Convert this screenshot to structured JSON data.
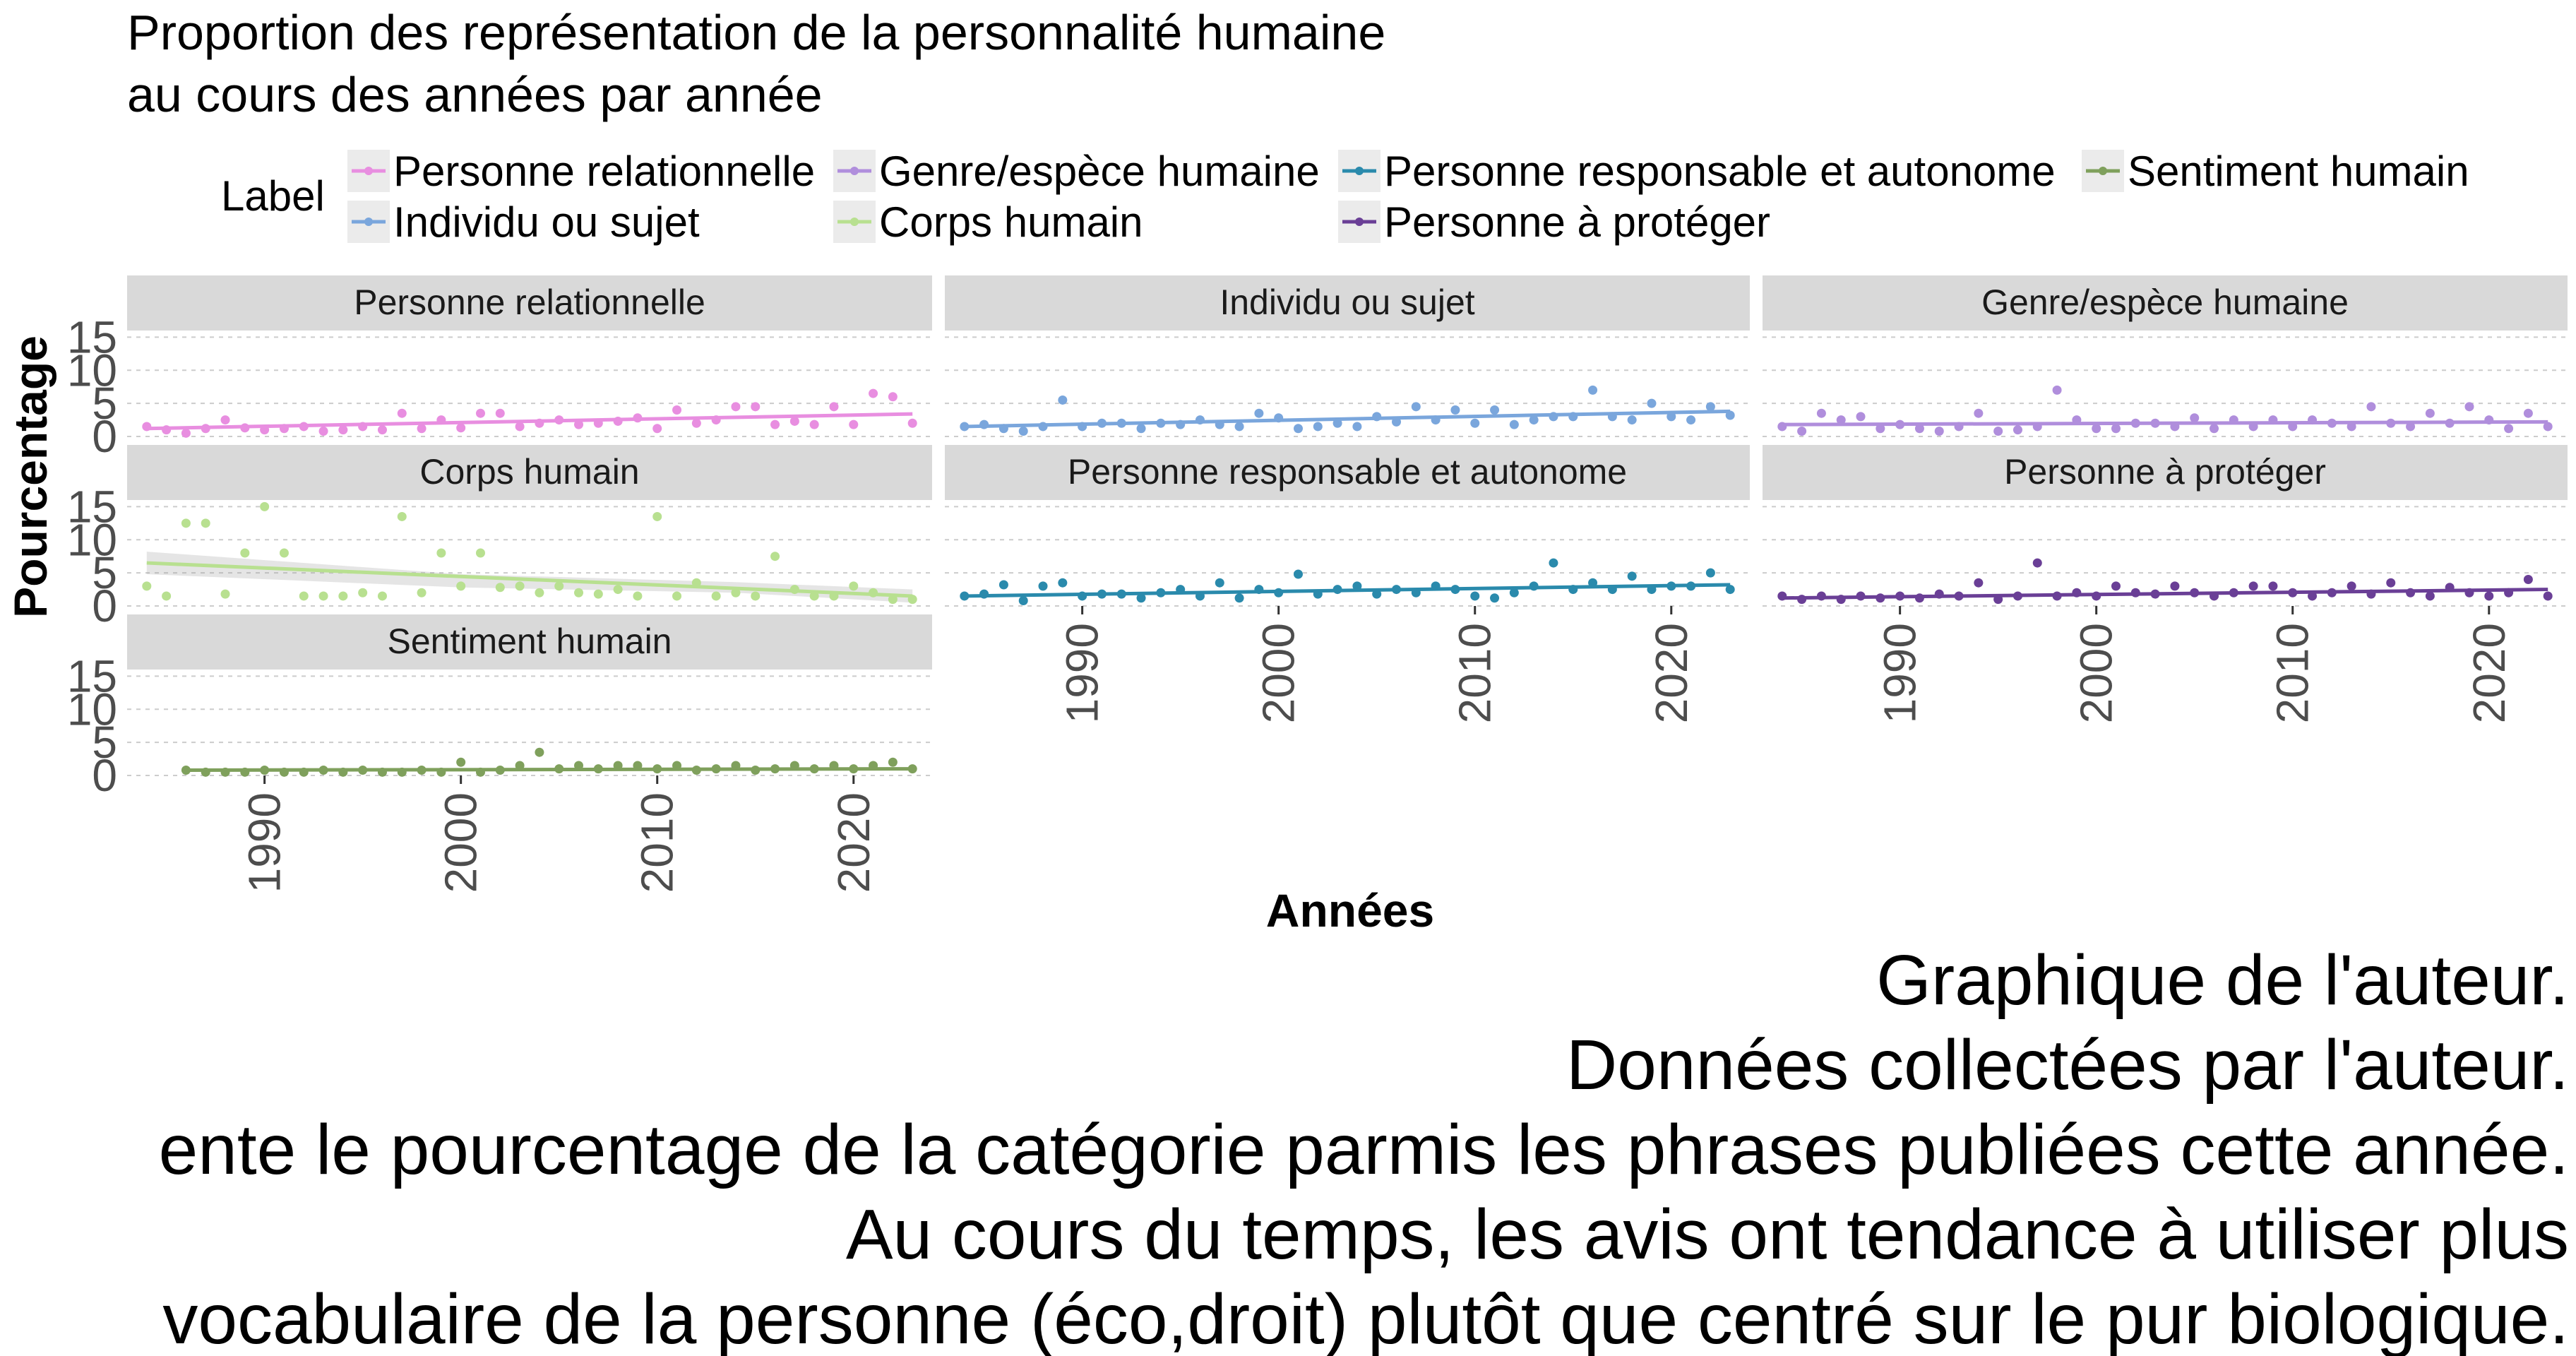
{
  "chart_data": {
    "type": "scatter",
    "title_lines": [
      "Proportion des représentation de la personnalité humaine",
      "au cours des années par année"
    ],
    "xlabel": "Années",
    "ylabel": "Pourcentage",
    "xlim": [
      1983,
      2024
    ],
    "ylim": [
      0,
      16
    ],
    "x_ticks": [
      1990,
      2000,
      2010,
      2020
    ],
    "y_ticks": [
      0,
      5,
      10,
      15
    ],
    "grid": true,
    "legend": {
      "title": "Label",
      "placement": "top",
      "entries": [
        "Personne relationnelle",
        "Genre/espèce humaine",
        "Personne responsable et autonome",
        "Sentiment humain",
        "Individu ou sujet",
        "Corps humain",
        "Personne à protéger"
      ]
    },
    "facets": [
      {
        "name": "Personne relationnelle",
        "color": "#e88ee0",
        "trend": [
          1.2,
          3.4
        ],
        "x": [
          1984,
          1985,
          1986,
          1987,
          1988,
          1989,
          1990,
          1991,
          1992,
          1993,
          1994,
          1995,
          1996,
          1997,
          1998,
          1999,
          2000,
          2001,
          2002,
          2003,
          2004,
          2005,
          2006,
          2007,
          2008,
          2009,
          2010,
          2011,
          2012,
          2013,
          2014,
          2015,
          2016,
          2017,
          2018,
          2019,
          2020,
          2021,
          2022,
          2023
        ],
        "y": [
          1.5,
          1.0,
          0.5,
          1.2,
          2.5,
          1.3,
          1.0,
          1.2,
          1.5,
          0.8,
          1.0,
          1.5,
          1.0,
          3.5,
          1.2,
          2.5,
          1.3,
          3.5,
          3.5,
          1.5,
          2.0,
          2.5,
          1.8,
          2.0,
          2.3,
          2.8,
          1.2,
          4.0,
          2.0,
          2.5,
          4.5,
          4.5,
          1.8,
          2.3,
          1.8,
          4.5,
          1.8,
          6.5,
          6.0,
          2.0
        ]
      },
      {
        "name": "Individu ou sujet",
        "color": "#7aa6dc",
        "trend": [
          1.5,
          3.8
        ],
        "x": [
          1984,
          1985,
          1986,
          1987,
          1988,
          1989,
          1990,
          1991,
          1992,
          1993,
          1994,
          1995,
          1996,
          1997,
          1998,
          1999,
          2000,
          2001,
          2002,
          2003,
          2004,
          2005,
          2006,
          2007,
          2008,
          2009,
          2010,
          2011,
          2012,
          2013,
          2014,
          2015,
          2016,
          2017,
          2018,
          2019,
          2020,
          2021,
          2022,
          2023
        ],
        "y": [
          1.5,
          1.8,
          1.2,
          0.8,
          1.5,
          5.5,
          1.5,
          2.0,
          2.0,
          1.2,
          2.0,
          1.8,
          2.5,
          1.8,
          1.5,
          3.5,
          2.8,
          1.2,
          1.5,
          2.0,
          1.5,
          3.0,
          2.2,
          4.5,
          2.5,
          4.0,
          2.0,
          4.0,
          1.8,
          2.5,
          3.0,
          3.0,
          7.0,
          3.0,
          2.5,
          5.0,
          3.0,
          2.5,
          4.5,
          3.2
        ]
      },
      {
        "name": "Genre/espèce humaine",
        "color": "#b08edc",
        "trend": [
          1.8,
          2.2
        ],
        "x": [
          1984,
          1985,
          1986,
          1987,
          1988,
          1989,
          1990,
          1991,
          1992,
          1993,
          1994,
          1995,
          1996,
          1997,
          1998,
          1999,
          2000,
          2001,
          2002,
          2003,
          2004,
          2005,
          2006,
          2007,
          2008,
          2009,
          2010,
          2011,
          2012,
          2013,
          2014,
          2015,
          2016,
          2017,
          2018,
          2019,
          2020,
          2021,
          2022,
          2023
        ],
        "y": [
          1.5,
          0.8,
          3.5,
          2.5,
          3.0,
          1.2,
          1.8,
          1.2,
          0.8,
          1.5,
          3.5,
          0.8,
          1.0,
          1.5,
          7.0,
          2.5,
          1.2,
          1.2,
          2.0,
          2.0,
          1.5,
          2.8,
          1.2,
          2.5,
          1.5,
          2.5,
          1.5,
          2.5,
          2.0,
          1.5,
          4.5,
          2.0,
          1.5,
          3.5,
          2.0,
          4.5,
          2.5,
          1.2,
          3.5,
          1.5
        ]
      },
      {
        "name": "Corps humain",
        "color": "#b8e090",
        "trend": [
          6.5,
          1.5
        ],
        "band": [
          [
            1984,
            4.8,
            8.2
          ],
          [
            2000,
            2.8,
            4.8
          ],
          [
            2014,
            2.0,
            3.6
          ],
          [
            2023,
            0.5,
            2.5
          ]
        ],
        "x": [
          1984,
          1985,
          1986,
          1987,
          1988,
          1989,
          1990,
          1991,
          1992,
          1993,
          1994,
          1995,
          1996,
          1997,
          1998,
          1999,
          2000,
          2001,
          2002,
          2003,
          2004,
          2005,
          2006,
          2007,
          2008,
          2009,
          2010,
          2011,
          2012,
          2013,
          2014,
          2015,
          2016,
          2017,
          2018,
          2019,
          2020,
          2021,
          2022,
          2023
        ],
        "y": [
          3.0,
          1.5,
          12.5,
          12.5,
          1.8,
          8.0,
          15.0,
          8.0,
          1.5,
          1.5,
          1.5,
          2.0,
          1.5,
          13.5,
          2.0,
          8.0,
          3.0,
          8.0,
          2.8,
          3.0,
          2.0,
          3.0,
          2.0,
          1.8,
          2.5,
          1.5,
          13.5,
          1.5,
          3.5,
          1.5,
          2.0,
          1.5,
          7.5,
          2.5,
          1.5,
          1.5,
          3.0,
          2.0,
          1.0,
          1.0
        ]
      },
      {
        "name": "Personne responsable et autonome",
        "color": "#2a8aac",
        "trend": [
          1.5,
          3.2
        ],
        "x": [
          1984,
          1985,
          1986,
          1987,
          1988,
          1989,
          1990,
          1991,
          1992,
          1993,
          1994,
          1995,
          1996,
          1997,
          1998,
          1999,
          2000,
          2001,
          2002,
          2003,
          2004,
          2005,
          2006,
          2007,
          2008,
          2009,
          2010,
          2011,
          2012,
          2013,
          2014,
          2015,
          2016,
          2017,
          2018,
          2019,
          2020,
          2021,
          2022,
          2023
        ],
        "y": [
          1.5,
          1.8,
          3.2,
          0.8,
          3.0,
          3.5,
          1.5,
          1.8,
          1.8,
          1.2,
          2.0,
          2.5,
          1.5,
          3.5,
          1.2,
          2.5,
          2.0,
          4.8,
          1.8,
          2.5,
          3.0,
          1.8,
          2.5,
          2.0,
          3.0,
          2.5,
          1.5,
          1.2,
          2.0,
          3.0,
          6.5,
          2.5,
          3.5,
          2.5,
          4.5,
          2.5,
          3.0,
          3.0,
          5.0,
          2.5
        ]
      },
      {
        "name": "Personne à protéger",
        "color": "#6a3f96",
        "trend": [
          1.2,
          2.5
        ],
        "x": [
          1984,
          1985,
          1986,
          1987,
          1988,
          1989,
          1990,
          1991,
          1992,
          1993,
          1994,
          1995,
          1996,
          1997,
          1998,
          1999,
          2000,
          2001,
          2002,
          2003,
          2004,
          2005,
          2006,
          2007,
          2008,
          2009,
          2010,
          2011,
          2012,
          2013,
          2014,
          2015,
          2016,
          2017,
          2018,
          2019,
          2020,
          2021,
          2022,
          2023
        ],
        "y": [
          1.5,
          1.0,
          1.5,
          1.0,
          1.5,
          1.2,
          1.5,
          1.2,
          1.8,
          1.5,
          3.5,
          1.0,
          1.5,
          6.5,
          1.5,
          2.0,
          1.5,
          3.0,
          2.0,
          1.8,
          3.0,
          2.0,
          1.5,
          2.0,
          3.0,
          3.0,
          2.0,
          1.5,
          2.0,
          3.0,
          1.8,
          3.5,
          2.0,
          1.5,
          2.8,
          2.0,
          1.5,
          2.0,
          4.0,
          1.5
        ]
      },
      {
        "name": "Sentiment humain",
        "color": "#7fa05c",
        "trend": [
          0.8,
          1.0
        ],
        "x": [
          1986,
          1987,
          1988,
          1989,
          1990,
          1991,
          1992,
          1993,
          1994,
          1995,
          1996,
          1997,
          1998,
          1999,
          2000,
          2001,
          2002,
          2003,
          2004,
          2005,
          2006,
          2007,
          2008,
          2009,
          2010,
          2011,
          2012,
          2013,
          2014,
          2015,
          2016,
          2017,
          2018,
          2019,
          2020,
          2021,
          2022,
          2023
        ],
        "y": [
          0.8,
          0.5,
          0.5,
          0.5,
          0.8,
          0.5,
          0.5,
          0.8,
          0.5,
          0.8,
          0.5,
          0.5,
          0.8,
          0.5,
          2.0,
          0.5,
          0.8,
          1.5,
          3.5,
          1.0,
          1.5,
          1.0,
          1.5,
          1.5,
          1.0,
          1.5,
          0.8,
          1.0,
          1.5,
          0.8,
          1.0,
          1.5,
          1.0,
          1.5,
          1.0,
          1.5,
          2.0,
          1.0
        ]
      }
    ]
  },
  "captions": [
    "Graphique de l'auteur.",
    "Données collectées par l'auteur.",
    "ente le pourcentage de la catégorie parmis les phrases publiées cette année.",
    "Au cours du temps, les avis ont tendance à utiliser plus",
    "vocabulaire de la personne (éco,droit) plutôt que centré sur le pur biologique."
  ]
}
